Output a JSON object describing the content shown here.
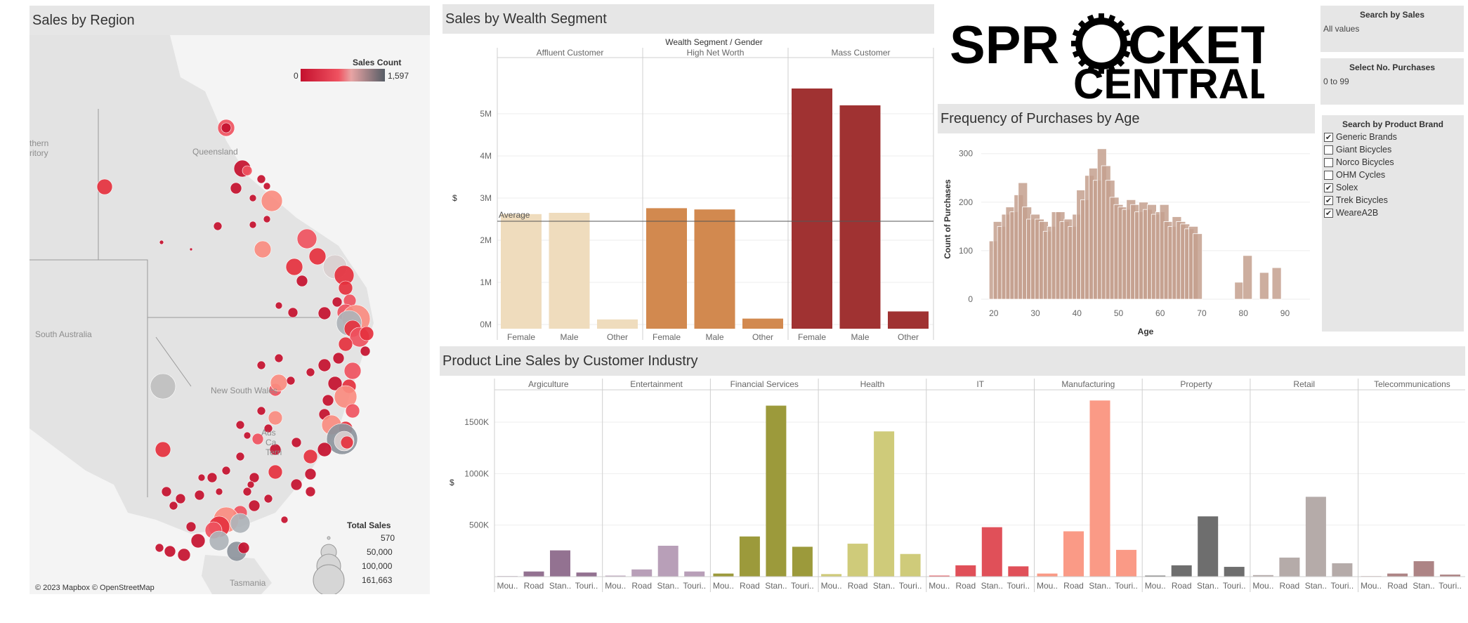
{
  "map_panel": {
    "title": "Sales by Region",
    "legend_color_title": "Sales Count",
    "legend_color_min": "0",
    "legend_color_max": "1,597",
    "legend_size_title": "Total Sales",
    "legend_size_values": [
      "570",
      "50,000",
      "100,000",
      "161,663"
    ],
    "regions": [
      "Queensland",
      "South Australia",
      "New South Wales",
      "Tasmania"
    ],
    "partial_labels": [
      "thern",
      "ritory",
      "Aus",
      "Ca",
      "Terri"
    ],
    "attribution": "© 2023 Mapbox © OpenStreetMap"
  },
  "wealth_panel": {
    "title": "Sales by Wealth Segment",
    "header": "Wealth Segment  /  Gender",
    "ylabel": "$",
    "average_label": "Average",
    "chart_data": {
      "type": "bar",
      "segments": [
        "Affluent Customer",
        "High Net Worth",
        "Mass Customer"
      ],
      "categories": [
        "Female",
        "Male",
        "Other"
      ],
      "series": [
        {
          "segment": "Affluent Customer",
          "values": [
            2.62,
            2.65,
            0.12
          ]
        },
        {
          "segment": "High Net Worth",
          "values": [
            2.76,
            2.73,
            0.14
          ]
        },
        {
          "segment": "Mass Customer",
          "values": [
            5.6,
            5.2,
            0.31
          ]
        }
      ],
      "average": 2.45,
      "y_ticks": [
        "0M",
        "1M",
        "2M",
        "3M",
        "4M",
        "5M"
      ],
      "ylim": [
        0,
        6.1
      ],
      "colors": [
        "#efdcbd",
        "#d2894f",
        "#a03232"
      ]
    }
  },
  "logo": {
    "line1": "SPR",
    "line1b": "CKET",
    "line2": "CENTRAL"
  },
  "age_panel": {
    "title": "Frequency of Purchases by Age",
    "xlabel": "Age",
    "ylabel": "Count of Purchases",
    "chart_data": {
      "type": "bar",
      "x_ticks": [
        "20",
        "30",
        "40",
        "50",
        "60",
        "70",
        "80",
        "90"
      ],
      "y_ticks": [
        "0",
        "100",
        "200",
        "300"
      ],
      "xlim": [
        17,
        96
      ],
      "ylim": [
        0,
        330
      ],
      "bars": [
        [
          20,
          120
        ],
        [
          21,
          160
        ],
        [
          22,
          150
        ],
        [
          23,
          175
        ],
        [
          24,
          190
        ],
        [
          25,
          180
        ],
        [
          26,
          215
        ],
        [
          27,
          240
        ],
        [
          28,
          190
        ],
        [
          29,
          165
        ],
        [
          30,
          175
        ],
        [
          31,
          165
        ],
        [
          32,
          160
        ],
        [
          33,
          140
        ],
        [
          34,
          150
        ],
        [
          35,
          180
        ],
        [
          36,
          180
        ],
        [
          37,
          160
        ],
        [
          38,
          165
        ],
        [
          39,
          150
        ],
        [
          40,
          175
        ],
        [
          41,
          225
        ],
        [
          42,
          205
        ],
        [
          43,
          255
        ],
        [
          44,
          270
        ],
        [
          45,
          245
        ],
        [
          46,
          310
        ],
        [
          47,
          275
        ],
        [
          48,
          245
        ],
        [
          49,
          210
        ],
        [
          50,
          195
        ],
        [
          51,
          190
        ],
        [
          52,
          185
        ],
        [
          53,
          205
        ],
        [
          54,
          195
        ],
        [
          55,
          180
        ],
        [
          56,
          200
        ],
        [
          57,
          185
        ],
        [
          58,
          195
        ],
        [
          59,
          175
        ],
        [
          60,
          180
        ],
        [
          61,
          195
        ],
        [
          62,
          160
        ],
        [
          63,
          150
        ],
        [
          64,
          170
        ],
        [
          65,
          160
        ],
        [
          66,
          155
        ],
        [
          67,
          145
        ],
        [
          68,
          150
        ],
        [
          69,
          135
        ],
        [
          79,
          35
        ],
        [
          81,
          90
        ],
        [
          85,
          55
        ],
        [
          88,
          65
        ]
      ],
      "color": "#c4a08e"
    }
  },
  "filters": {
    "sales": {
      "title": "Search by Sales",
      "value": "All values"
    },
    "purchases": {
      "title": "Select No. Purchases",
      "value": "0 to 99"
    },
    "brand": {
      "title": "Search by Product Brand",
      "items": [
        {
          "label": "Generic Brands",
          "checked": true
        },
        {
          "label": "Giant Bicycles",
          "checked": false
        },
        {
          "label": "Norco Bicycles",
          "checked": false
        },
        {
          "label": "OHM Cycles",
          "checked": false
        },
        {
          "label": "Solex",
          "checked": true
        },
        {
          "label": "Trek Bicycles",
          "checked": true
        },
        {
          "label": "WeareA2B",
          "checked": true
        }
      ]
    }
  },
  "product_panel": {
    "title": "Product Line Sales by Customer Industry",
    "ylabel": "$",
    "chart_data": {
      "type": "bar",
      "industries": [
        "Argiculture",
        "Entertainment",
        "Financial Services",
        "Health",
        "IT",
        "Manufacturing",
        "Property",
        "Retail",
        "Telecommunications"
      ],
      "categories": [
        "Mou..",
        "Road",
        "Stan..",
        "Touri.."
      ],
      "series": [
        {
          "industry": "Argiculture",
          "values": [
            5,
            50,
            255,
            40
          ],
          "color": "#937291"
        },
        {
          "industry": "Entertainment",
          "values": [
            10,
            70,
            300,
            50
          ],
          "color": "#b89fb8"
        },
        {
          "industry": "Financial Services",
          "values": [
            30,
            390,
            1660,
            290
          ],
          "color": "#9c9a3b"
        },
        {
          "industry": "Health",
          "values": [
            25,
            320,
            1410,
            220
          ],
          "color": "#cfcb7a"
        },
        {
          "industry": "IT",
          "values": [
            10,
            110,
            480,
            100
          ],
          "color": "#e05059"
        },
        {
          "industry": "Manufacturing",
          "values": [
            30,
            440,
            1710,
            260
          ],
          "color": "#fa9a86"
        },
        {
          "industry": "Property",
          "values": [
            10,
            110,
            585,
            95
          ],
          "color": "#6e6e6e"
        },
        {
          "industry": "Retail",
          "values": [
            15,
            185,
            775,
            130
          ],
          "color": "#b5aba9"
        },
        {
          "industry": "Telecommunications",
          "values": [
            5,
            30,
            150,
            20
          ],
          "color": "#ad8485"
        }
      ],
      "y_ticks": [
        "500K",
        "1000K",
        "1500K"
      ],
      "ylim": [
        0,
        1800
      ]
    }
  }
}
